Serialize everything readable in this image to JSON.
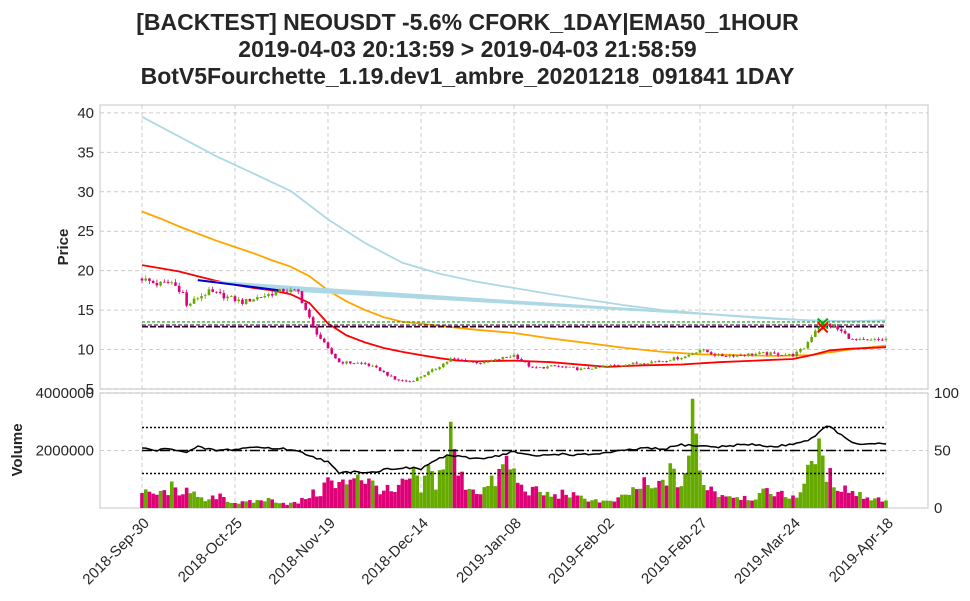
{
  "title_lines": [
    "[BACKTEST] NEOUSDT -5.6% CFORK_1DAY|EMA50_1HOUR",
    "2019-04-03 20:13:59 > 2019-04-03 21:58:59",
    "BotV5Fourchette_1.19.dev1_ambre_20201218_091841 1DAY"
  ],
  "chart_data": [
    {
      "type": "candlestick",
      "ylabel": "Price",
      "ylim": [
        5,
        41
      ],
      "yticks": [
        5,
        10,
        15,
        20,
        25,
        30,
        35,
        40
      ],
      "grid": true,
      "xtick_labels": [
        "2018-Sep-30",
        "2018-Oct-25",
        "2018-Nov-19",
        "2018-Dec-14",
        "2019-Jan-08",
        "2019-Feb-02",
        "2019-Feb-27",
        "2019-Mar-24",
        "2019-Apr-18"
      ],
      "xtick_days": [
        0,
        25,
        50,
        75,
        100,
        125,
        150,
        175,
        200
      ],
      "colors": {
        "up": "#66aa00",
        "down": "#dd0077",
        "ema_fast": "#ff0000",
        "ema_mid": "#ffa500",
        "ema_slow": "#add8e6",
        "trend": "#0000cc",
        "level_dark": "#330033",
        "level_green": "#00aa00"
      },
      "candles_anchors": [
        [
          0,
          19
        ],
        [
          4,
          18.3
        ],
        [
          8,
          18.5
        ],
        [
          11,
          17.2
        ],
        [
          12,
          15.5
        ],
        [
          15,
          16.6
        ],
        [
          18,
          17.3
        ],
        [
          22,
          16.8
        ],
        [
          27,
          16
        ],
        [
          31,
          16.6
        ],
        [
          38,
          17.5
        ],
        [
          42,
          17.3
        ],
        [
          46,
          12.8
        ],
        [
          50,
          10
        ],
        [
          53,
          8.4
        ],
        [
          57,
          8.3
        ],
        [
          60,
          8.2
        ],
        [
          64,
          7.4
        ],
        [
          68,
          6.2
        ],
        [
          72,
          5.9
        ],
        [
          75,
          6.6
        ],
        [
          79,
          7.6
        ],
        [
          83,
          8.8
        ],
        [
          88,
          8.5
        ],
        [
          92,
          8.3
        ],
        [
          96,
          8.8
        ],
        [
          100,
          9.3
        ],
        [
          105,
          7.6
        ],
        [
          111,
          7.9
        ],
        [
          118,
          7.5
        ],
        [
          125,
          7.9
        ],
        [
          132,
          8.2
        ],
        [
          140,
          8.6
        ],
        [
          146,
          9.1
        ],
        [
          150,
          10
        ],
        [
          155,
          9.2
        ],
        [
          160,
          9.3
        ],
        [
          167,
          9.5
        ],
        [
          175,
          9.3
        ],
        [
          178,
          10.2
        ],
        [
          181,
          12.5
        ],
        [
          184,
          13.2
        ],
        [
          186,
          12.8
        ],
        [
          188,
          12.3
        ],
        [
          191,
          11.2
        ],
        [
          195,
          11.1
        ],
        [
          200,
          11.3
        ]
      ],
      "ema_fast": [
        [
          0,
          20.7
        ],
        [
          5,
          20.3
        ],
        [
          10,
          19.9
        ],
        [
          15,
          19.3
        ],
        [
          20,
          18.7
        ],
        [
          25,
          18.2
        ],
        [
          30,
          17.8
        ],
        [
          35,
          17.5
        ],
        [
          40,
          17
        ],
        [
          45,
          15.9
        ],
        [
          50,
          13.3
        ],
        [
          55,
          11.8
        ],
        [
          60,
          10.9
        ],
        [
          65,
          10.2
        ],
        [
          70,
          9.7
        ],
        [
          75,
          9.3
        ],
        [
          80,
          8.9
        ],
        [
          85,
          8.6
        ],
        [
          90,
          8.5
        ],
        [
          100,
          8.6
        ],
        [
          110,
          8.4
        ],
        [
          120,
          8
        ],
        [
          125,
          7.8
        ],
        [
          135,
          8
        ],
        [
          145,
          8.1
        ],
        [
          155,
          8.4
        ],
        [
          165,
          8.6
        ],
        [
          175,
          8.8
        ],
        [
          180,
          9.3
        ],
        [
          185,
          9.9
        ],
        [
          190,
          10.1
        ],
        [
          200,
          10.3
        ]
      ],
      "ema_mid": [
        [
          0,
          27.5
        ],
        [
          5,
          26.6
        ],
        [
          10,
          25.6
        ],
        [
          15,
          24.7
        ],
        [
          20,
          23.8
        ],
        [
          25,
          23
        ],
        [
          30,
          22.2
        ],
        [
          35,
          21.3
        ],
        [
          40,
          20.5
        ],
        [
          45,
          19.3
        ],
        [
          50,
          17.5
        ],
        [
          55,
          16.1
        ],
        [
          60,
          15
        ],
        [
          65,
          14.1
        ],
        [
          70,
          13.5
        ],
        [
          75,
          13.3
        ],
        [
          80,
          13
        ],
        [
          90,
          12.5
        ],
        [
          100,
          12.1
        ],
        [
          110,
          11.4
        ],
        [
          120,
          10.8
        ],
        [
          130,
          10.2
        ],
        [
          140,
          9.7
        ],
        [
          150,
          9.4
        ],
        [
          160,
          9.3
        ],
        [
          170,
          9.2
        ],
        [
          180,
          9.3
        ],
        [
          190,
          10
        ],
        [
          200,
          10.5
        ]
      ],
      "ema_slow": [
        [
          0,
          39.5
        ],
        [
          10,
          37
        ],
        [
          20,
          34.5
        ],
        [
          30,
          32.3
        ],
        [
          40,
          30.1
        ],
        [
          50,
          26.5
        ],
        [
          60,
          23.5
        ],
        [
          70,
          21
        ],
        [
          80,
          19.6
        ],
        [
          90,
          18.6
        ],
        [
          100,
          17.8
        ],
        [
          110,
          17
        ],
        [
          120,
          16.3
        ],
        [
          130,
          15.6
        ],
        [
          140,
          15
        ],
        [
          150,
          14.6
        ],
        [
          160,
          14.2
        ],
        [
          170,
          13.9
        ],
        [
          180,
          13.7
        ],
        [
          190,
          13.6
        ],
        [
          200,
          13.7
        ]
      ],
      "trend_segment": [
        [
          15,
          18.8
        ],
        [
          37,
          17.5
        ]
      ],
      "trend_fan_to": [
        183,
        13.6
      ],
      "levels": [
        13.5,
        12.9
      ],
      "markers": [
        [
          183,
          13.3
        ],
        [
          183,
          12.8
        ]
      ]
    },
    {
      "type": "bar",
      "ylabel": "Volume",
      "ylim": [
        0,
        4000000
      ],
      "yticks": [
        2000000,
        4000000
      ],
      "yticks_right": [
        0,
        50,
        100
      ],
      "right_ylim": [
        0,
        100
      ],
      "volume_anchors": [
        [
          0,
          500000
        ],
        [
          5,
          480000
        ],
        [
          8,
          700000
        ],
        [
          10,
          400000
        ],
        [
          12,
          900000
        ],
        [
          15,
          300000
        ],
        [
          18,
          250000
        ],
        [
          21,
          500000
        ],
        [
          24,
          200000
        ],
        [
          27,
          180000
        ],
        [
          30,
          220000
        ],
        [
          33,
          300000
        ],
        [
          36,
          260000
        ],
        [
          39,
          150000
        ],
        [
          42,
          180000
        ],
        [
          45,
          450000
        ],
        [
          48,
          550000
        ],
        [
          50,
          1000000
        ],
        [
          52,
          700000
        ],
        [
          55,
          900000
        ],
        [
          57,
          1300000
        ],
        [
          60,
          1000000
        ],
        [
          62,
          800000
        ],
        [
          65,
          650000
        ],
        [
          68,
          500000
        ],
        [
          70,
          800000
        ],
        [
          73,
          1100000
        ],
        [
          75,
          600000
        ],
        [
          77,
          1300000
        ],
        [
          79,
          900000
        ],
        [
          81,
          1500000
        ],
        [
          83,
          2500000
        ],
        [
          85,
          1200000
        ],
        [
          87,
          850000
        ],
        [
          90,
          600000
        ],
        [
          92,
          650000
        ],
        [
          95,
          950000
        ],
        [
          98,
          1600000
        ],
        [
          100,
          1200000
        ],
        [
          102,
          700000
        ],
        [
          105,
          600000
        ],
        [
          108,
          500000
        ],
        [
          111,
          400000
        ],
        [
          114,
          550000
        ],
        [
          117,
          350000
        ],
        [
          120,
          320000
        ],
        [
          123,
          250000
        ],
        [
          126,
          200000
        ],
        [
          129,
          350000
        ],
        [
          132,
          600000
        ],
        [
          135,
          800000
        ],
        [
          138,
          600000
        ],
        [
          140,
          1000000
        ],
        [
          142,
          1200000
        ],
        [
          145,
          800000
        ],
        [
          147,
          1800000
        ],
        [
          148,
          3600000
        ],
        [
          150,
          1200000
        ],
        [
          152,
          800000
        ],
        [
          155,
          500000
        ],
        [
          158,
          450000
        ],
        [
          161,
          400000
        ],
        [
          164,
          350000
        ],
        [
          167,
          500000
        ],
        [
          170,
          600000
        ],
        [
          173,
          400000
        ],
        [
          176,
          450000
        ],
        [
          178,
          800000
        ],
        [
          180,
          1500000
        ],
        [
          181,
          2300000
        ],
        [
          183,
          1400000
        ],
        [
          186,
          900000
        ],
        [
          189,
          700000
        ],
        [
          192,
          500000
        ],
        [
          196,
          350000
        ],
        [
          200,
          300000
        ]
      ],
      "rsi_anchors": [
        [
          0,
          52
        ],
        [
          4,
          50
        ],
        [
          8,
          52
        ],
        [
          12,
          48
        ],
        [
          15,
          53
        ],
        [
          20,
          50
        ],
        [
          25,
          51
        ],
        [
          30,
          53
        ],
        [
          35,
          52
        ],
        [
          40,
          51
        ],
        [
          45,
          46
        ],
        [
          50,
          40
        ],
        [
          53,
          30
        ],
        [
          57,
          32
        ],
        [
          62,
          31
        ],
        [
          66,
          34
        ],
        [
          70,
          35
        ],
        [
          75,
          34
        ],
        [
          78,
          40
        ],
        [
          82,
          46
        ],
        [
          86,
          44
        ],
        [
          90,
          43
        ],
        [
          95,
          45
        ],
        [
          100,
          49
        ],
        [
          105,
          45
        ],
        [
          112,
          47
        ],
        [
          118,
          46
        ],
        [
          125,
          48
        ],
        [
          130,
          50
        ],
        [
          135,
          52
        ],
        [
          140,
          51
        ],
        [
          145,
          55
        ],
        [
          150,
          54
        ],
        [
          155,
          53
        ],
        [
          160,
          55
        ],
        [
          165,
          55
        ],
        [
          170,
          53
        ],
        [
          175,
          56
        ],
        [
          178,
          58
        ],
        [
          181,
          62
        ],
        [
          184,
          72
        ],
        [
          187,
          66
        ],
        [
          190,
          58
        ],
        [
          194,
          55
        ],
        [
          200,
          56
        ]
      ],
      "rsi_levels": [
        70,
        50,
        30
      ]
    }
  ]
}
